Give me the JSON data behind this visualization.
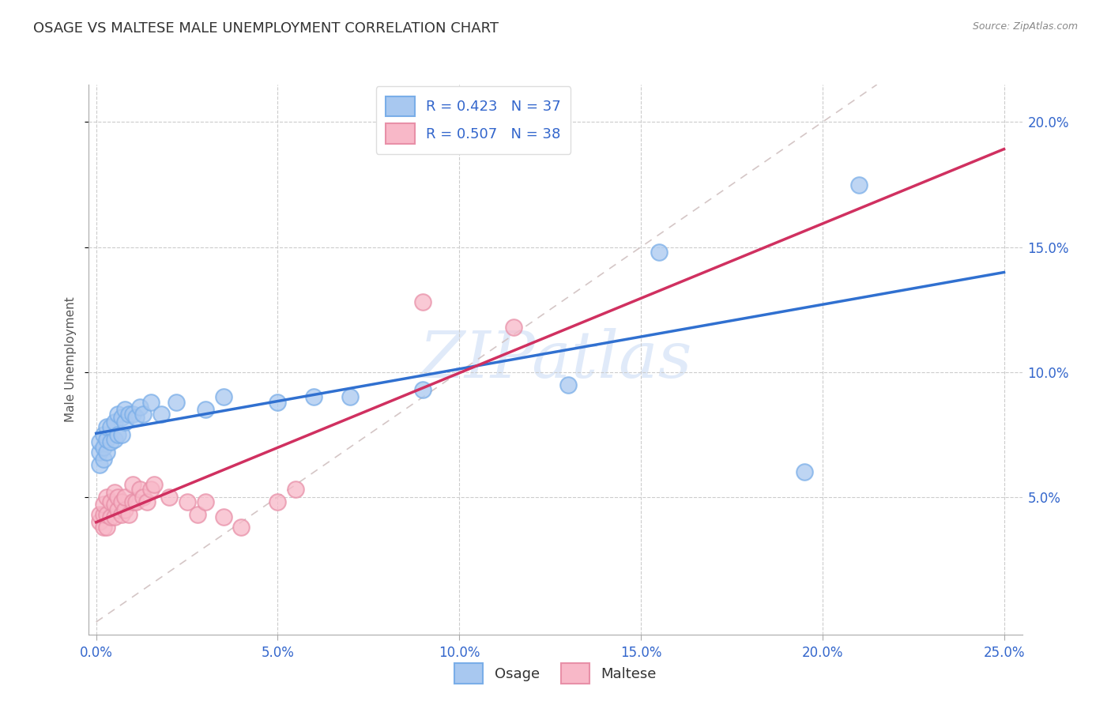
{
  "title": "OSAGE VS MALTESE MALE UNEMPLOYMENT CORRELATION CHART",
  "source": "Source: ZipAtlas.com",
  "ylabel": "Male Unemployment",
  "xlim": [
    -0.002,
    0.255
  ],
  "ylim": [
    -0.005,
    0.215
  ],
  "xticks": [
    0.0,
    0.05,
    0.1,
    0.15,
    0.2,
    0.25
  ],
  "yticks": [
    0.05,
    0.1,
    0.15,
    0.2
  ],
  "watermark": "ZIPatlas",
  "legend_blue_label": "R = 0.423   N = 37",
  "legend_pink_label": "R = 0.507   N = 38",
  "legend_osage": "Osage",
  "legend_maltese": "Maltese",
  "blue_scatter_face": "#a8c8f0",
  "blue_scatter_edge": "#7aaee8",
  "pink_scatter_face": "#f8b8c8",
  "pink_scatter_edge": "#e890a8",
  "blue_line_color": "#3070d0",
  "pink_line_color": "#d03060",
  "diagonal_color": "#d0c0c0",
  "osage_x": [
    0.001,
    0.001,
    0.001,
    0.002,
    0.002,
    0.002,
    0.003,
    0.003,
    0.003,
    0.004,
    0.004,
    0.005,
    0.005,
    0.006,
    0.006,
    0.007,
    0.007,
    0.008,
    0.008,
    0.009,
    0.01,
    0.011,
    0.012,
    0.013,
    0.015,
    0.018,
    0.022,
    0.03,
    0.035,
    0.05,
    0.06,
    0.07,
    0.09,
    0.13,
    0.155,
    0.195,
    0.21
  ],
  "osage_y": [
    0.063,
    0.068,
    0.072,
    0.065,
    0.07,
    0.075,
    0.068,
    0.073,
    0.078,
    0.072,
    0.078,
    0.073,
    0.08,
    0.075,
    0.083,
    0.075,
    0.082,
    0.08,
    0.085,
    0.083,
    0.083,
    0.082,
    0.086,
    0.083,
    0.088,
    0.083,
    0.088,
    0.085,
    0.09,
    0.088,
    0.09,
    0.09,
    0.093,
    0.095,
    0.148,
    0.06,
    0.175
  ],
  "maltese_x": [
    0.001,
    0.001,
    0.002,
    0.002,
    0.002,
    0.003,
    0.003,
    0.003,
    0.004,
    0.004,
    0.005,
    0.005,
    0.005,
    0.006,
    0.006,
    0.007,
    0.007,
    0.008,
    0.008,
    0.009,
    0.01,
    0.01,
    0.011,
    0.012,
    0.013,
    0.014,
    0.015,
    0.016,
    0.02,
    0.025,
    0.028,
    0.03,
    0.035,
    0.04,
    0.05,
    0.055,
    0.09,
    0.115
  ],
  "maltese_y": [
    0.04,
    0.043,
    0.038,
    0.043,
    0.047,
    0.038,
    0.043,
    0.05,
    0.042,
    0.048,
    0.042,
    0.047,
    0.052,
    0.045,
    0.05,
    0.043,
    0.048,
    0.045,
    0.05,
    0.043,
    0.048,
    0.055,
    0.048,
    0.053,
    0.05,
    0.048,
    0.053,
    0.055,
    0.05,
    0.048,
    0.043,
    0.048,
    0.042,
    0.038,
    0.048,
    0.053,
    0.128,
    0.118
  ]
}
